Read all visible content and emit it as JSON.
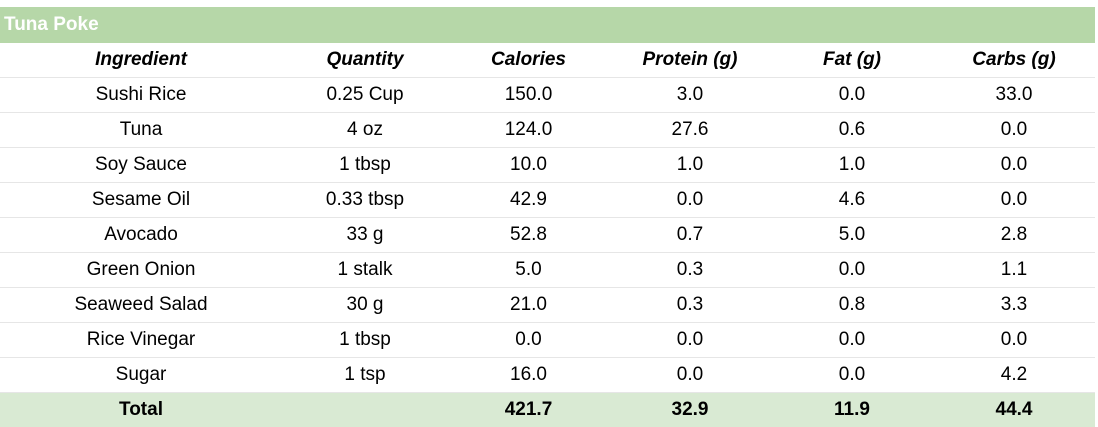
{
  "title": "Tuna Poke",
  "columns": [
    "Ingredient",
    "Quantity",
    "Calories",
    "Protein (g)",
    "Fat (g)",
    "Carbs (g)"
  ],
  "rows": [
    [
      "Sushi Rice",
      "0.25 Cup",
      "150.0",
      "3.0",
      "0.0",
      "33.0"
    ],
    [
      "Tuna",
      "4 oz",
      "124.0",
      "27.6",
      "0.6",
      "0.0"
    ],
    [
      "Soy Sauce",
      "1 tbsp",
      "10.0",
      "1.0",
      "1.0",
      "0.0"
    ],
    [
      "Sesame Oil",
      "0.33 tbsp",
      "42.9",
      "0.0",
      "4.6",
      "0.0"
    ],
    [
      "Avocado",
      "33 g",
      "52.8",
      "0.7",
      "5.0",
      "2.8"
    ],
    [
      "Green Onion",
      "1 stalk",
      "5.0",
      "0.3",
      "0.0",
      "1.1"
    ],
    [
      "Seaweed Salad",
      "30 g",
      "21.0",
      "0.3",
      "0.8",
      "3.3"
    ],
    [
      "Rice Vinegar",
      "1 tbsp",
      "0.0",
      "0.0",
      "0.0",
      "0.0"
    ],
    [
      "Sugar",
      "1 tsp",
      "16.0",
      "0.0",
      "0.0",
      "4.2"
    ]
  ],
  "total": {
    "label": "Total",
    "quantity": "",
    "calories": "421.7",
    "protein": "32.9",
    "fat": "11.9",
    "carbs": "44.4"
  },
  "colors": {
    "title_bg": "#b6d7a8",
    "total_bg": "#d9ead3"
  }
}
